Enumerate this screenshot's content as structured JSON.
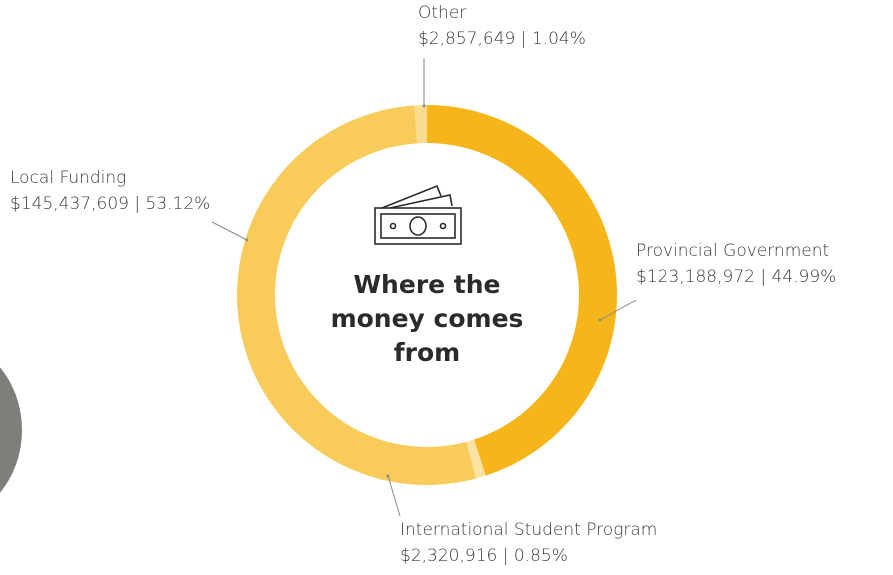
{
  "chart_data": {
    "type": "pie",
    "title": "Where the money comes from",
    "categories": [
      "Provincial Government",
      "International Student Program",
      "Local Funding",
      "Other"
    ],
    "values": [
      123188972,
      2320916,
      145437609,
      2857649
    ],
    "value_labels": [
      "$123,188,972 | 44.99%",
      "$2,320,916 | 0.85%",
      "$145,437,609 | 53.12%",
      "$2,857,649 | 1.04%"
    ],
    "colors": [
      "#f5b51b",
      "#fbe3a3",
      "#f8cb5b",
      "#fbdd92"
    ]
  }
}
